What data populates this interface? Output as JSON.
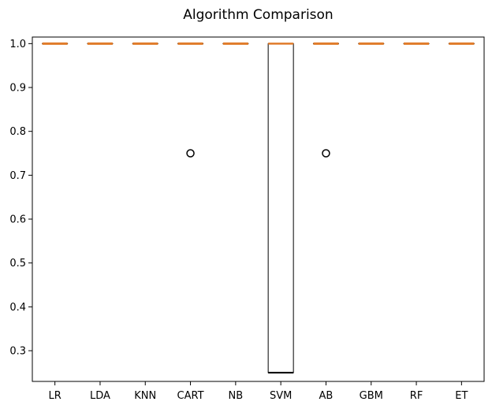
{
  "chart_data": {
    "type": "box",
    "title": "Algorithm Comparison",
    "xlabel": "",
    "ylabel": "",
    "ylim": [
      0.23,
      1.015
    ],
    "yticks": [
      "0.3",
      "0.4",
      "0.5",
      "0.6",
      "0.7",
      "0.8",
      "0.9",
      "1.0"
    ],
    "grid": false,
    "categories": [
      "LR",
      "LDA",
      "KNN",
      "CART",
      "NB",
      "SVM",
      "AB",
      "GBM",
      "RF",
      "ET"
    ],
    "boxes": [
      {
        "q1": 1.0,
        "median": 1.0,
        "q3": 1.0,
        "whisker_low": 1.0,
        "whisker_high": 1.0,
        "outliers": []
      },
      {
        "q1": 1.0,
        "median": 1.0,
        "q3": 1.0,
        "whisker_low": 1.0,
        "whisker_high": 1.0,
        "outliers": []
      },
      {
        "q1": 1.0,
        "median": 1.0,
        "q3": 1.0,
        "whisker_low": 1.0,
        "whisker_high": 1.0,
        "outliers": []
      },
      {
        "q1": 1.0,
        "median": 1.0,
        "q3": 1.0,
        "whisker_low": 1.0,
        "whisker_high": 1.0,
        "outliers": [
          0.75
        ]
      },
      {
        "q1": 1.0,
        "median": 1.0,
        "q3": 1.0,
        "whisker_low": 1.0,
        "whisker_high": 1.0,
        "outliers": []
      },
      {
        "q1": 0.25,
        "median": 0.25,
        "q3": 1.0,
        "whisker_low": 0.25,
        "whisker_high": 1.0,
        "outliers": []
      },
      {
        "q1": 1.0,
        "median": 1.0,
        "q3": 1.0,
        "whisker_low": 1.0,
        "whisker_high": 1.0,
        "outliers": [
          0.75
        ]
      },
      {
        "q1": 1.0,
        "median": 1.0,
        "q3": 1.0,
        "whisker_low": 1.0,
        "whisker_high": 1.0,
        "outliers": []
      },
      {
        "q1": 1.0,
        "median": 1.0,
        "q3": 1.0,
        "whisker_low": 1.0,
        "whisker_high": 1.0,
        "outliers": []
      },
      {
        "q1": 1.0,
        "median": 1.0,
        "q3": 1.0,
        "whisker_low": 1.0,
        "whisker_high": 1.0,
        "outliers": []
      }
    ],
    "colors": {
      "box": "#000000",
      "median": "#e07b2a",
      "outlier": "#000000"
    }
  }
}
